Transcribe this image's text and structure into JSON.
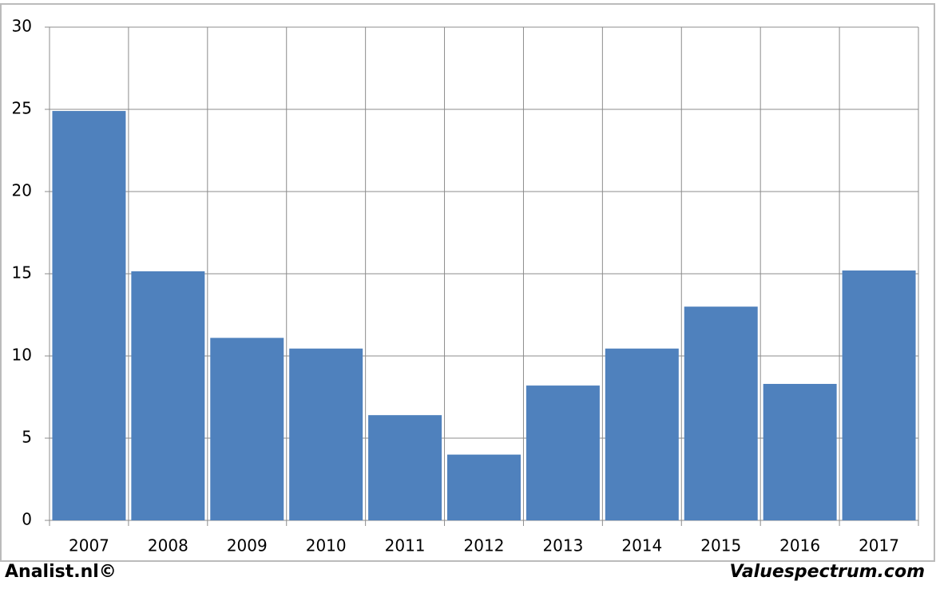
{
  "chart_data": {
    "type": "bar",
    "categories": [
      "2007",
      "2008",
      "2009",
      "2010",
      "2011",
      "2012",
      "2013",
      "2014",
      "2015",
      "2016",
      "2017"
    ],
    "values": [
      24.9,
      15.15,
      11.1,
      10.45,
      6.4,
      4.0,
      8.2,
      10.45,
      13.0,
      8.3,
      15.2
    ],
    "color": "#4f81bd",
    "ylim": [
      0,
      30
    ],
    "yticks": [
      0,
      5,
      10,
      15,
      20,
      25,
      30
    ],
    "grid": true,
    "footer_left": "Analist.nl©",
    "footer_right": "Valuespectrum.com"
  }
}
